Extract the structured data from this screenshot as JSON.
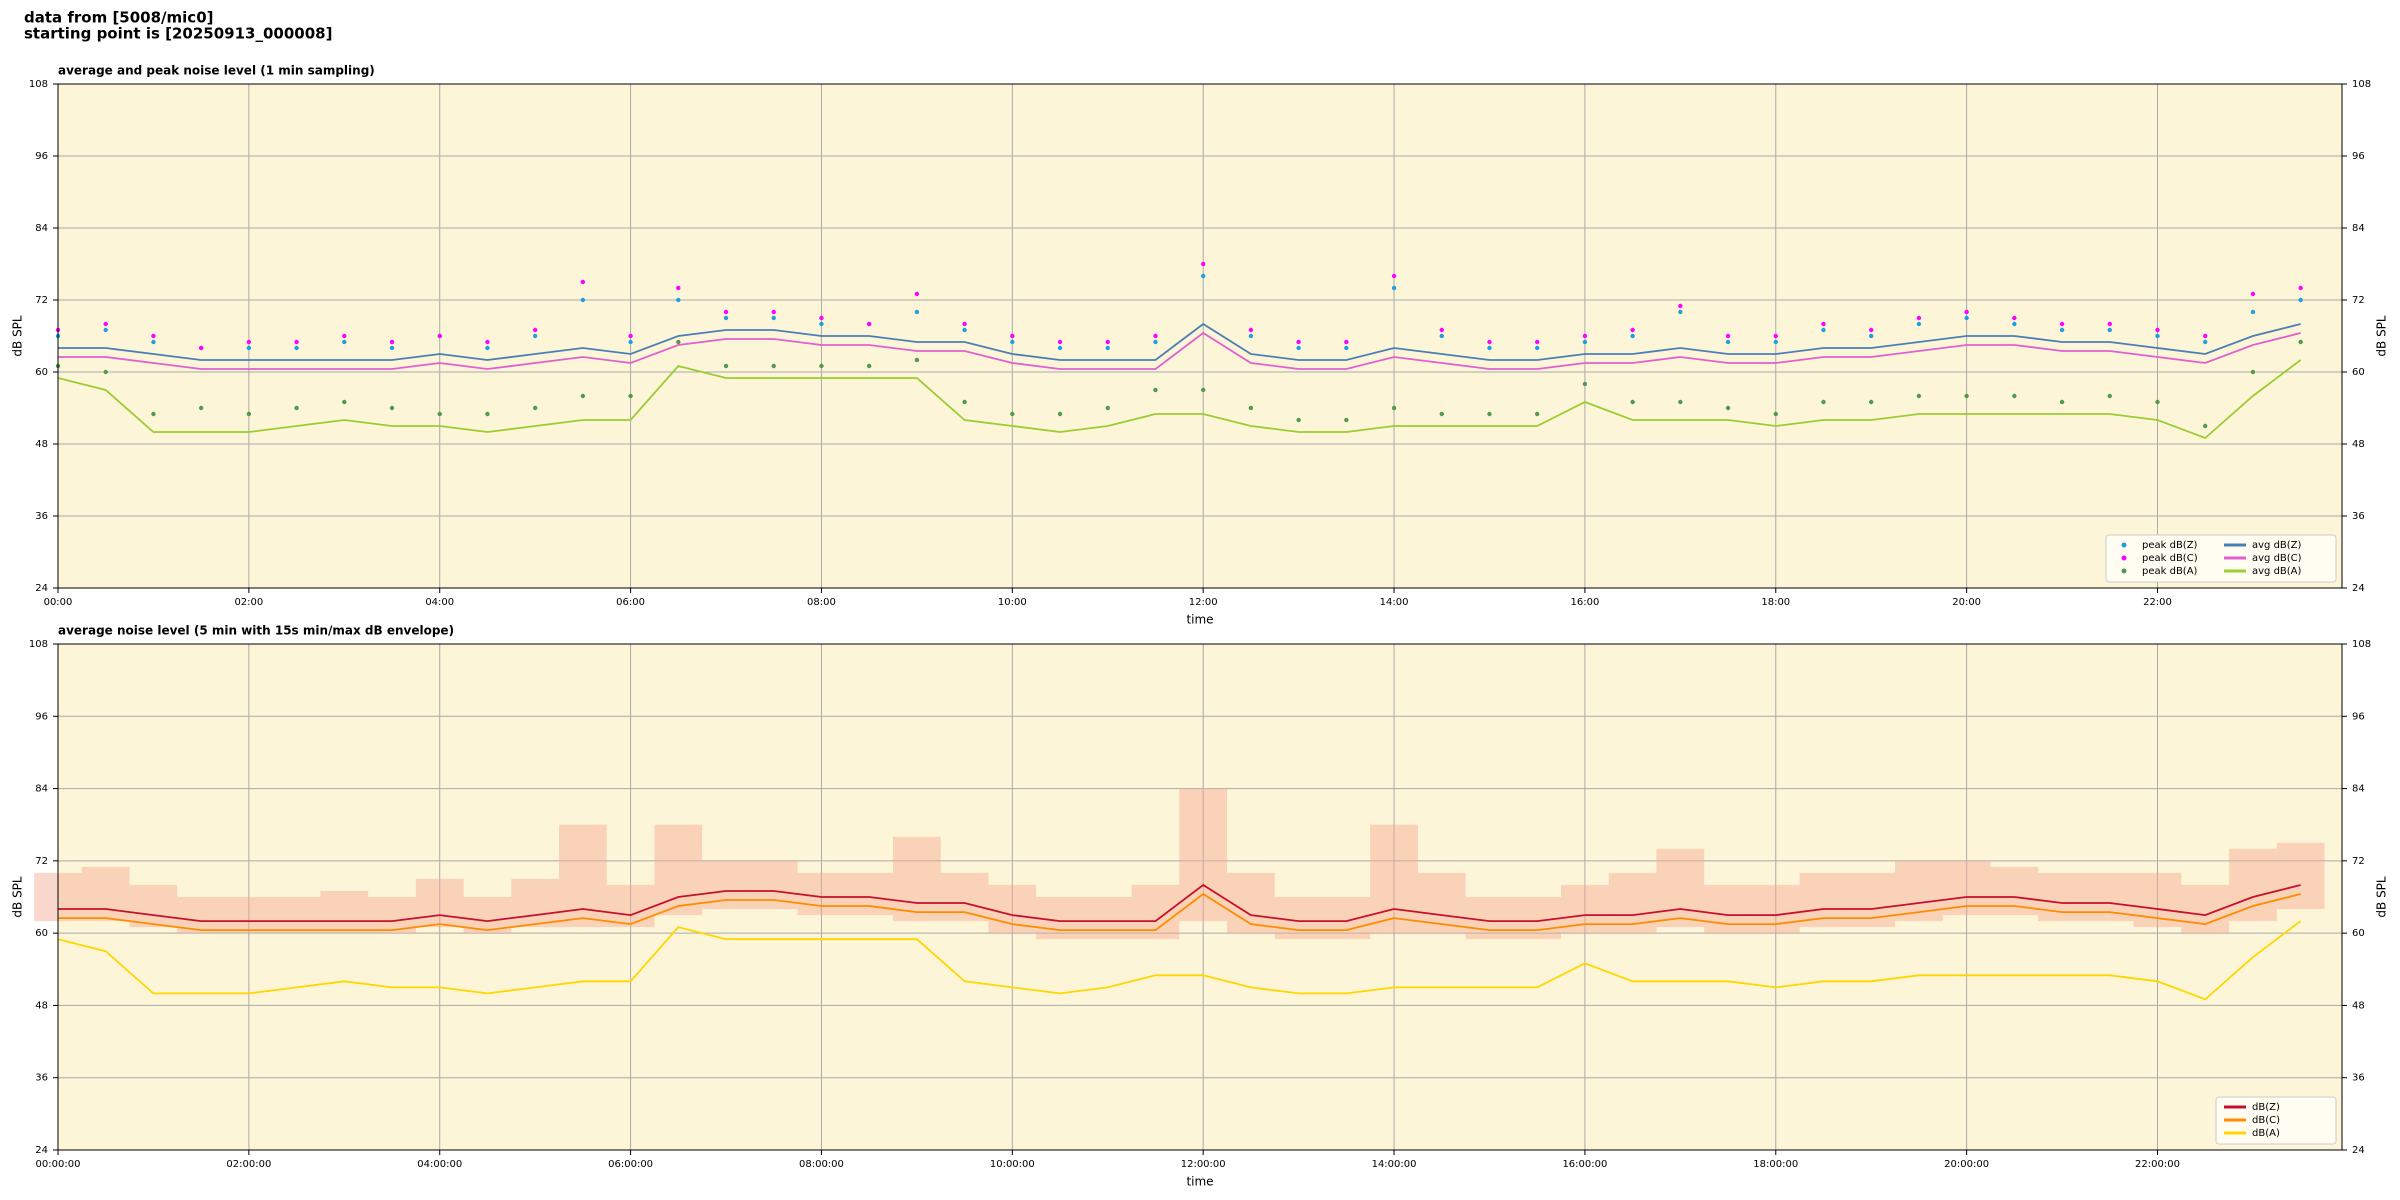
{
  "header": {
    "line1": "data from [5008/mic0]",
    "line2": "starting point is [20250913_000008]"
  },
  "chart_data": [
    {
      "type": "line",
      "title": "average and peak noise level (1 min sampling)",
      "xlabel": "time",
      "ylabel": "dB SPL",
      "x": [
        0,
        30,
        60,
        90,
        120,
        150,
        180,
        210,
        240,
        270,
        300,
        330,
        360,
        390,
        420,
        450,
        480,
        510,
        540,
        570,
        600,
        630,
        660,
        690,
        720,
        750,
        780,
        810,
        840,
        870,
        900,
        930,
        960,
        990,
        1020,
        1050,
        1080,
        1110,
        1140,
        1170,
        1200,
        1230,
        1260,
        1290,
        1320,
        1350,
        1380,
        1410
      ],
      "xlim": [
        0,
        1436
      ],
      "xticks": [
        {
          "value": 0,
          "label": "00:00"
        },
        {
          "value": 120,
          "label": "02:00"
        },
        {
          "value": 240,
          "label": "04:00"
        },
        {
          "value": 360,
          "label": "06:00"
        },
        {
          "value": 480,
          "label": "08:00"
        },
        {
          "value": 600,
          "label": "10:00"
        },
        {
          "value": 720,
          "label": "12:00"
        },
        {
          "value": 840,
          "label": "14:00"
        },
        {
          "value": 960,
          "label": "16:00"
        },
        {
          "value": 1080,
          "label": "18:00"
        },
        {
          "value": 1200,
          "label": "20:00"
        },
        {
          "value": 1320,
          "label": "22:00"
        }
      ],
      "ylim": [
        24,
        108
      ],
      "yticks": [
        24,
        36,
        48,
        60,
        72,
        84,
        96,
        108
      ],
      "grid": true,
      "legend": "lower right",
      "legend_columns": 2,
      "series": [
        {
          "name": "peak dB(Z)",
          "type": "scatter",
          "color": "#1f9fe0",
          "values": [
            66,
            67,
            65,
            64,
            64,
            64,
            65,
            64,
            66,
            64,
            66,
            72,
            65,
            72,
            69,
            69,
            68,
            68,
            70,
            67,
            65,
            64,
            64,
            65,
            76,
            66,
            64,
            64,
            74,
            66,
            64,
            64,
            65,
            66,
            70,
            65,
            65,
            67,
            66,
            68,
            69,
            68,
            67,
            67,
            66,
            65,
            70,
            72
          ]
        },
        {
          "name": "peak dB(C)",
          "type": "scatter",
          "color": "#ff00ff",
          "values": [
            67,
            68,
            66,
            64,
            65,
            65,
            66,
            65,
            66,
            65,
            67,
            75,
            66,
            74,
            70,
            70,
            69,
            68,
            73,
            68,
            66,
            65,
            65,
            66,
            78,
            67,
            65,
            65,
            76,
            67,
            65,
            65,
            66,
            67,
            71,
            66,
            66,
            68,
            67,
            69,
            70,
            69,
            68,
            68,
            67,
            66,
            73,
            74
          ]
        },
        {
          "name": "peak dB(A)",
          "type": "scatter",
          "color": "#4f9a4f",
          "values": [
            61,
            60,
            53,
            54,
            53,
            54,
            55,
            54,
            53,
            53,
            54,
            56,
            56,
            65,
            61,
            61,
            61,
            61,
            62,
            55,
            53,
            53,
            54,
            57,
            57,
            54,
            52,
            52,
            54,
            53,
            53,
            53,
            58,
            55,
            55,
            54,
            53,
            55,
            55,
            56,
            56,
            56,
            55,
            56,
            55,
            51,
            60,
            65
          ]
        },
        {
          "name": "avg dB(Z)",
          "type": "line",
          "color": "#4a7fb5",
          "values": [
            64,
            64,
            63,
            62,
            62,
            62,
            62,
            62,
            63,
            62,
            63,
            64,
            63,
            66,
            67,
            67,
            66,
            66,
            65,
            65,
            63,
            62,
            62,
            62,
            68,
            63,
            62,
            62,
            64,
            63,
            62,
            62,
            63,
            63,
            64,
            63,
            63,
            64,
            64,
            65,
            66,
            66,
            65,
            65,
            64,
            63,
            66,
            68
          ]
        },
        {
          "name": "avg dB(C)",
          "type": "line",
          "color": "#e060d0",
          "values": [
            62.5,
            62.5,
            61.5,
            60.5,
            60.5,
            60.5,
            60.5,
            60.5,
            61.5,
            60.5,
            61.5,
            62.5,
            61.5,
            64.5,
            65.5,
            65.5,
            64.5,
            64.5,
            63.5,
            63.5,
            61.5,
            60.5,
            60.5,
            60.5,
            66.5,
            61.5,
            60.5,
            60.5,
            62.5,
            61.5,
            60.5,
            60.5,
            61.5,
            61.5,
            62.5,
            61.5,
            61.5,
            62.5,
            62.5,
            63.5,
            64.5,
            64.5,
            63.5,
            63.5,
            62.5,
            61.5,
            64.5,
            66.5
          ]
        },
        {
          "name": "avg dB(A)",
          "type": "line",
          "color": "#9acd32",
          "values": [
            59,
            57,
            50,
            50,
            50,
            51,
            52,
            51,
            51,
            50,
            51,
            52,
            52,
            61,
            59,
            59,
            59,
            59,
            59,
            52,
            51,
            50,
            51,
            53,
            53,
            51,
            50,
            50,
            51,
            51,
            51,
            51,
            55,
            52,
            52,
            52,
            51,
            52,
            52,
            53,
            53,
            53,
            53,
            53,
            52,
            49,
            56,
            62
          ]
        }
      ]
    },
    {
      "type": "line",
      "title": "average noise level (5 min with 15s min/max dB envelope)",
      "xlabel": "time",
      "ylabel": "dB SPL",
      "x": [
        0,
        30,
        60,
        90,
        120,
        150,
        180,
        210,
        240,
        270,
        300,
        330,
        360,
        390,
        420,
        450,
        480,
        510,
        540,
        570,
        600,
        630,
        660,
        690,
        720,
        750,
        780,
        810,
        840,
        870,
        900,
        930,
        960,
        990,
        1020,
        1050,
        1080,
        1110,
        1140,
        1170,
        1200,
        1230,
        1260,
        1290,
        1320,
        1350,
        1380,
        1410
      ],
      "xlim": [
        0,
        1436
      ],
      "xticks": [
        {
          "value": 0,
          "label": "00:00:00"
        },
        {
          "value": 120,
          "label": "02:00:00"
        },
        {
          "value": 240,
          "label": "04:00:00"
        },
        {
          "value": 360,
          "label": "06:00:00"
        },
        {
          "value": 480,
          "label": "08:00:00"
        },
        {
          "value": 600,
          "label": "10:00:00"
        },
        {
          "value": 720,
          "label": "12:00:00"
        },
        {
          "value": 840,
          "label": "14:00:00"
        },
        {
          "value": 960,
          "label": "16:00:00"
        },
        {
          "value": 1080,
          "label": "18:00:00"
        },
        {
          "value": 1200,
          "label": "20:00:00"
        },
        {
          "value": 1320,
          "label": "22:00:00"
        }
      ],
      "ylim": [
        24,
        108
      ],
      "yticks": [
        24,
        36,
        48,
        60,
        72,
        84,
        96,
        108
      ],
      "grid": true,
      "legend": "lower right",
      "legend_columns": 1,
      "envelope": {
        "color": "#f4a890",
        "lower": [
          62,
          62,
          61,
          60,
          60,
          60,
          60,
          60,
          61,
          60,
          61,
          61,
          61,
          63,
          64,
          64,
          63,
          63,
          62,
          62,
          60,
          59,
          59,
          59,
          62,
          60,
          59,
          59,
          60,
          60,
          59,
          59,
          60,
          60,
          61,
          60,
          60,
          61,
          61,
          62,
          63,
          63,
          62,
          62,
          61,
          60,
          62,
          64
        ],
        "upper": [
          70,
          71,
          68,
          66,
          66,
          66,
          67,
          66,
          69,
          66,
          69,
          78,
          68,
          78,
          72,
          72,
          70,
          70,
          76,
          70,
          68,
          66,
          66,
          68,
          84,
          70,
          66,
          66,
          78,
          70,
          66,
          66,
          68,
          70,
          74,
          68,
          68,
          70,
          70,
          72,
          72,
          71,
          70,
          70,
          70,
          68,
          74,
          75
        ]
      },
      "series": [
        {
          "name": "dB(Z)",
          "type": "line",
          "color": "#c8102e",
          "values": [
            64,
            64,
            63,
            62,
            62,
            62,
            62,
            62,
            63,
            62,
            63,
            64,
            63,
            66,
            67,
            67,
            66,
            66,
            65,
            65,
            63,
            62,
            62,
            62,
            68,
            63,
            62,
            62,
            64,
            63,
            62,
            62,
            63,
            63,
            64,
            63,
            63,
            64,
            64,
            65,
            66,
            66,
            65,
            65,
            64,
            63,
            66,
            68
          ]
        },
        {
          "name": "dB(C)",
          "type": "line",
          "color": "#ff8c00",
          "values": [
            62.5,
            62.5,
            61.5,
            60.5,
            60.5,
            60.5,
            60.5,
            60.5,
            61.5,
            60.5,
            61.5,
            62.5,
            61.5,
            64.5,
            65.5,
            65.5,
            64.5,
            64.5,
            63.5,
            63.5,
            61.5,
            60.5,
            60.5,
            60.5,
            66.5,
            61.5,
            60.5,
            60.5,
            62.5,
            61.5,
            60.5,
            60.5,
            61.5,
            61.5,
            62.5,
            61.5,
            61.5,
            62.5,
            62.5,
            63.5,
            64.5,
            64.5,
            63.5,
            63.5,
            62.5,
            61.5,
            64.5,
            66.5
          ]
        },
        {
          "name": "dB(A)",
          "type": "line",
          "color": "#ffd700",
          "values": [
            59,
            57,
            50,
            50,
            50,
            51,
            52,
            51,
            51,
            50,
            51,
            52,
            52,
            61,
            59,
            59,
            59,
            59,
            59,
            52,
            51,
            50,
            51,
            53,
            53,
            51,
            50,
            50,
            51,
            51,
            51,
            51,
            55,
            52,
            52,
            52,
            51,
            52,
            52,
            53,
            53,
            53,
            53,
            53,
            52,
            49,
            56,
            62
          ]
        }
      ]
    }
  ]
}
